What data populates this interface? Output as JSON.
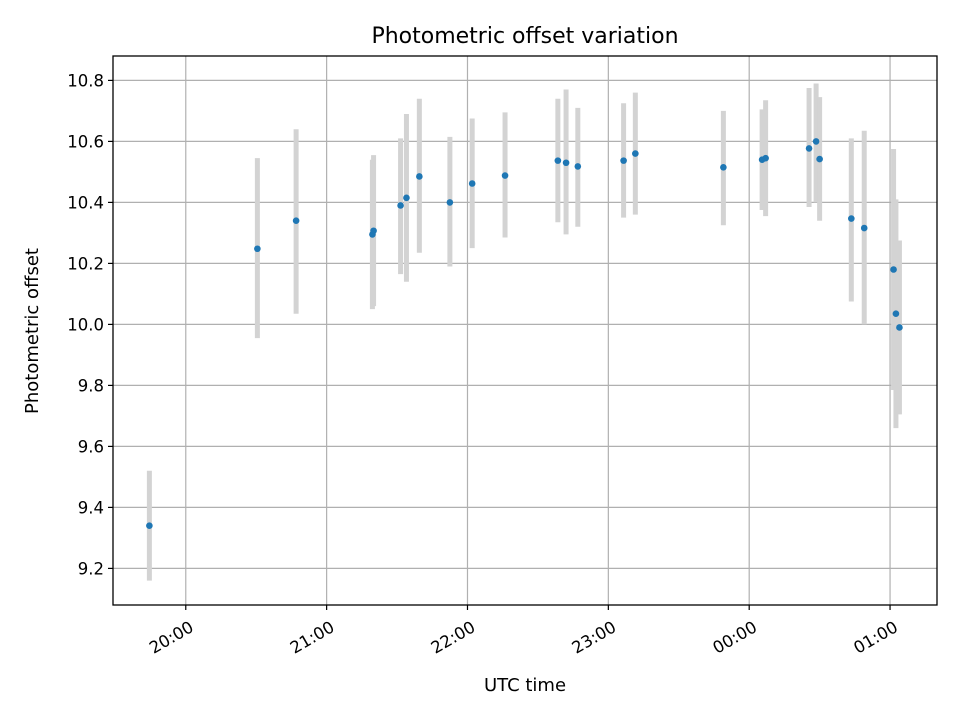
{
  "chart_data": {
    "type": "scatter",
    "title": "Photometric offset variation",
    "xlabel": "UTC time",
    "ylabel": "Photometric offset",
    "x_ticks": [
      "20:00",
      "21:00",
      "22:00",
      "23:00",
      "00:00",
      "01:00"
    ],
    "y_ticks": [
      "9.2",
      "9.4",
      "9.6",
      "9.8",
      "10.0",
      "10.2",
      "10.4",
      "10.6",
      "10.8"
    ],
    "x_tick_values": [
      0,
      60,
      120,
      180,
      240,
      300
    ],
    "y_tick_values": [
      9.2,
      9.4,
      9.6,
      9.8,
      10.0,
      10.2,
      10.4,
      10.6,
      10.8
    ],
    "xlim": [
      -31,
      320
    ],
    "ylim": [
      9.08,
      10.88
    ],
    "x_time_origin": "20:00",
    "grid": true,
    "colors": {
      "point": "#1f77b4",
      "errorbar": "#d3d3d3",
      "grid": "#b0b0b0"
    },
    "series": [
      {
        "points": [
          {
            "x": -15.5,
            "y": 9.34,
            "ylo": 9.16,
            "yhi": 9.52
          },
          {
            "x": 30.5,
            "y": 10.248,
            "ylo": 9.955,
            "yhi": 10.545
          },
          {
            "x": 47.0,
            "y": 10.34,
            "ylo": 10.035,
            "yhi": 10.64
          },
          {
            "x": 79.5,
            "y": 10.295,
            "ylo": 10.05,
            "yhi": 10.54
          },
          {
            "x": 80.0,
            "y": 10.307,
            "ylo": 10.06,
            "yhi": 10.555
          },
          {
            "x": 91.5,
            "y": 10.39,
            "ylo": 10.165,
            "yhi": 10.61
          },
          {
            "x": 94.0,
            "y": 10.415,
            "ylo": 10.14,
            "yhi": 10.69
          },
          {
            "x": 99.5,
            "y": 10.485,
            "ylo": 10.235,
            "yhi": 10.74
          },
          {
            "x": 112.5,
            "y": 10.4,
            "ylo": 10.19,
            "yhi": 10.615
          },
          {
            "x": 122.0,
            "y": 10.462,
            "ylo": 10.25,
            "yhi": 10.675
          },
          {
            "x": 136.0,
            "y": 10.488,
            "ylo": 10.285,
            "yhi": 10.695
          },
          {
            "x": 158.5,
            "y": 10.537,
            "ylo": 10.335,
            "yhi": 10.74
          },
          {
            "x": 162.0,
            "y": 10.53,
            "ylo": 10.295,
            "yhi": 10.77
          },
          {
            "x": 167.0,
            "y": 10.518,
            "ylo": 10.32,
            "yhi": 10.71
          },
          {
            "x": 186.5,
            "y": 10.537,
            "ylo": 10.35,
            "yhi": 10.725
          },
          {
            "x": 191.5,
            "y": 10.56,
            "ylo": 10.36,
            "yhi": 10.76
          },
          {
            "x": 229.0,
            "y": 10.515,
            "ylo": 10.325,
            "yhi": 10.7
          },
          {
            "x": 245.5,
            "y": 10.54,
            "ylo": 10.375,
            "yhi": 10.705
          },
          {
            "x": 247.0,
            "y": 10.545,
            "ylo": 10.355,
            "yhi": 10.735
          },
          {
            "x": 265.5,
            "y": 10.577,
            "ylo": 10.385,
            "yhi": 10.775
          },
          {
            "x": 268.5,
            "y": 10.6,
            "ylo": 10.4,
            "yhi": 10.79
          },
          {
            "x": 270.0,
            "y": 10.542,
            "ylo": 10.34,
            "yhi": 10.745
          },
          {
            "x": 283.5,
            "y": 10.347,
            "ylo": 10.075,
            "yhi": 10.61
          },
          {
            "x": 289.0,
            "y": 10.316,
            "ylo": 10.0,
            "yhi": 10.635
          },
          {
            "x": 301.5,
            "y": 10.18,
            "ylo": 9.785,
            "yhi": 10.575
          },
          {
            "x": 302.5,
            "y": 10.035,
            "ylo": 9.66,
            "yhi": 10.41
          },
          {
            "x": 304.0,
            "y": 9.99,
            "ylo": 9.705,
            "yhi": 10.275
          }
        ]
      }
    ]
  }
}
